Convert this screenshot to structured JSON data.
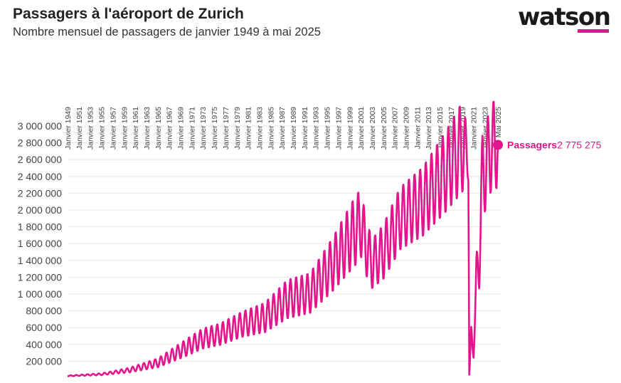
{
  "header": {
    "title": "Passagers à l'aéroport de Zurich",
    "subtitle": "Nombre mensuel de passagers de janvier 1949 à mai 2025",
    "logo": "watson"
  },
  "colors": {
    "accent": "#e3158c",
    "text": "#222222",
    "grid": "#e6e6e6"
  },
  "chart_data": {
    "type": "line",
    "title": "Passagers à l'aéroport de Zurich",
    "subtitle": "Nombre mensuel de passagers de janvier 1949 à mai 2025",
    "xlabel": "",
    "ylabel": "",
    "x_ticks": [
      "Janvier 1949",
      "Janvier 1951",
      "Janvier 1953",
      "Janvier 1955",
      "Janvier 1957",
      "Janvier 1959",
      "Janvier 1961",
      "Janvier 1963",
      "Janvier 1965",
      "Janvier 1967",
      "Janvier 1969",
      "Janvier 1971",
      "Janvier 1973",
      "Janvier 1975",
      "Janvier 1977",
      "Janvier 1979",
      "Janvier 1981",
      "Janvier 1983",
      "Janvier 1985",
      "Janvier 1987",
      "Janvier 1989",
      "Janvier 1991",
      "Janvier 1993",
      "Janvier 1995",
      "Janvier 1997",
      "Janvier 1999",
      "Janvier 2001",
      "Janvier 2003",
      "Janvier 2005",
      "Janvier 2007",
      "Janvier 2009",
      "Janvier 2011",
      "Janvier 2013",
      "Janvier 2015",
      "Janvier 2017",
      "Janvier 2019",
      "Janvier 2021",
      "Janvier 2023",
      "Mai 2025"
    ],
    "y_ticks": [
      "200 000",
      "400 000",
      "600 000",
      "800 000",
      "1 000 000",
      "1 200 000",
      "1 400 000",
      "1 600 000",
      "1 800 000",
      "2 000 000",
      "2 200 000",
      "2 400 000",
      "2 600 000",
      "2 800 000",
      "3 000 000"
    ],
    "ylim": [
      0,
      3000000
    ],
    "grid": true,
    "series": [
      {
        "name": "Passagers",
        "end_label": "2 775 275",
        "end_value": 2775275,
        "anchors": [
          [
            1949,
            25000,
            0.2
          ],
          [
            1955,
            45000,
            0.25
          ],
          [
            1960,
            95000,
            0.3
          ],
          [
            1965,
            180000,
            0.3
          ],
          [
            1970,
            360000,
            0.28
          ],
          [
            1973,
            470000,
            0.26
          ],
          [
            1976,
            520000,
            0.25
          ],
          [
            1980,
            640000,
            0.24
          ],
          [
            1984,
            720000,
            0.25
          ],
          [
            1988,
            940000,
            0.25
          ],
          [
            1992,
            1010000,
            0.24
          ],
          [
            1996,
            1350000,
            0.24
          ],
          [
            2000,
            1750000,
            0.24
          ],
          [
            2001,
            1850000,
            0.22
          ],
          [
            2002,
            1550000,
            0.22
          ],
          [
            2003,
            1360000,
            0.22
          ],
          [
            2005,
            1500000,
            0.22
          ],
          [
            2008,
            1900000,
            0.2
          ],
          [
            2012,
            2100000,
            0.2
          ],
          [
            2016,
            2450000,
            0.2
          ],
          [
            2019,
            2750000,
            0.2
          ],
          [
            2020.08,
            2650000,
            0.1
          ],
          [
            2020.25,
            40000,
            0.0
          ],
          [
            2020.6,
            500000,
            0.3
          ],
          [
            2021.0,
            300000,
            0.2
          ],
          [
            2021.5,
            1100000,
            0.3
          ],
          [
            2022.0,
            1500000,
            0.3
          ],
          [
            2022.6,
            2400000,
            0.22
          ],
          [
            2023.5,
            2600000,
            0.2
          ],
          [
            2024.5,
            2800000,
            0.18
          ],
          [
            2025.33,
            2775275,
            0.2
          ]
        ]
      }
    ]
  }
}
